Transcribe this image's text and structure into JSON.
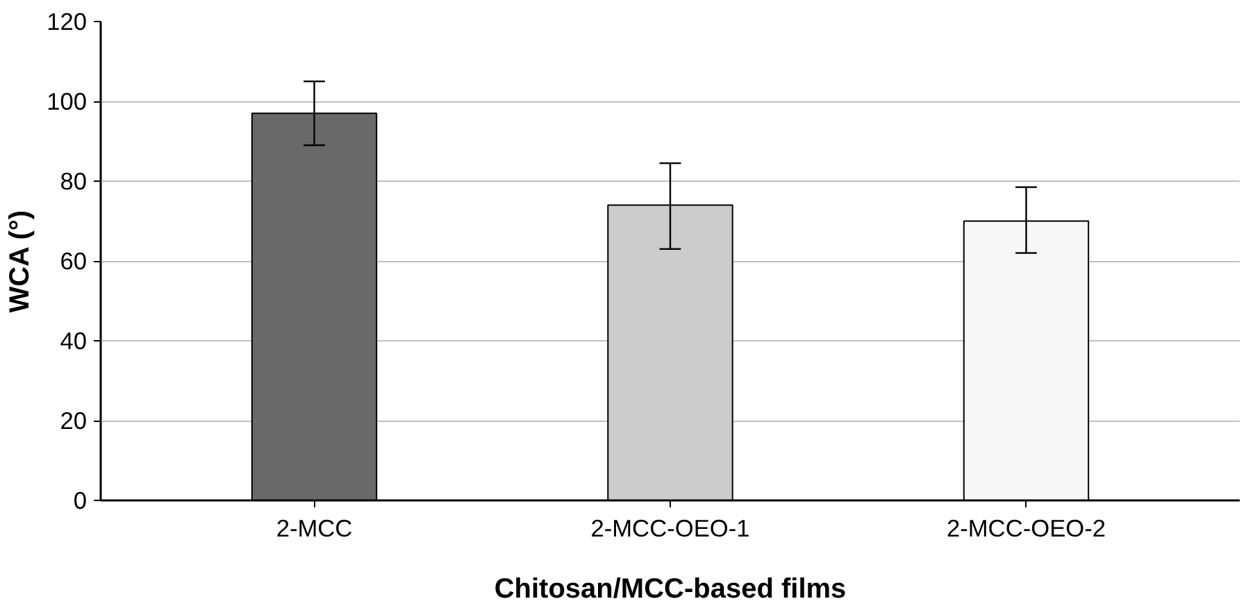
{
  "chart_data": {
    "type": "bar",
    "xlabel": "Chitosan/MCC-based films",
    "ylabel": "WCA (°)",
    "categories": [
      "2-MCC",
      "2-MCC-OEO-1",
      "2-MCC-OEO-2"
    ],
    "values": [
      97,
      74,
      70
    ],
    "colors": [
      "#696969",
      "#cccccc",
      "#f7f7f7"
    ],
    "errors": [
      [
        89,
        105
      ],
      [
        63,
        84.5
      ],
      [
        62,
        78.5
      ]
    ],
    "ylim": [
      0,
      120
    ],
    "yticks": [
      0,
      20,
      40,
      60,
      80,
      100,
      120
    ],
    "grid": "y"
  }
}
